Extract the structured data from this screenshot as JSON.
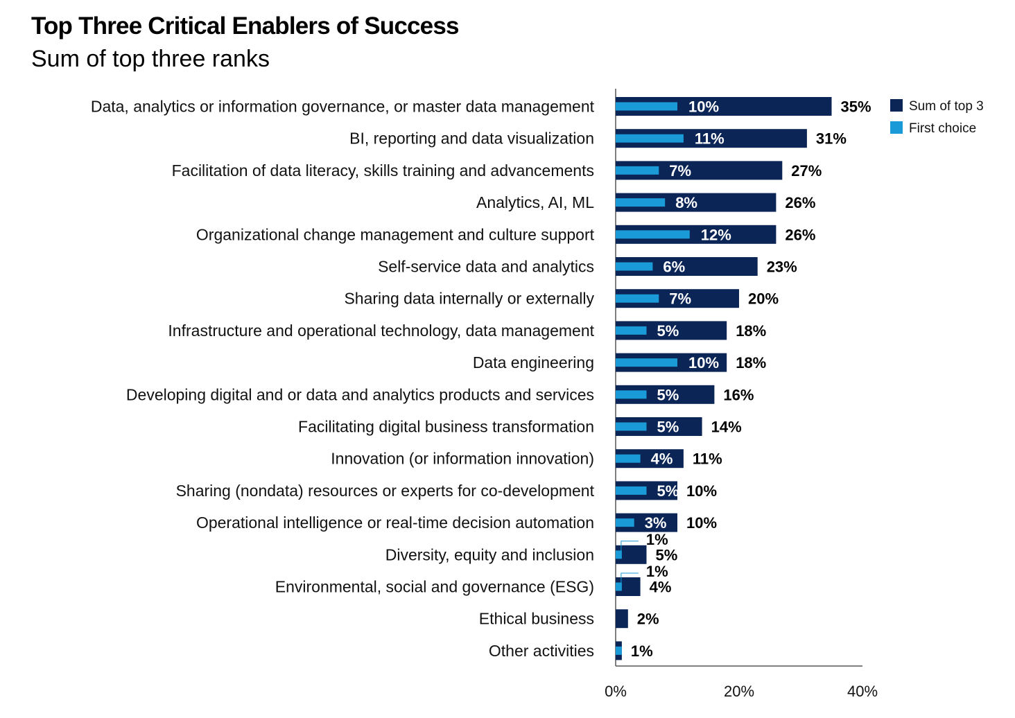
{
  "chart_data": {
    "type": "bar",
    "orientation": "horizontal",
    "title": "Top Three Critical Enablers of Success",
    "subtitle": "Sum of top three ranks",
    "categories": [
      "Data, analytics or information governance, or master data management",
      "BI, reporting and data visualization",
      "Facilitation of data literacy, skills training and advancements",
      "Analytics, AI, ML",
      "Organizational change management and culture support",
      "Self-service data and analytics",
      "Sharing data internally or externally",
      "Infrastructure and operational technology, data management",
      "Data engineering",
      "Developing digital and or data and analytics products and services",
      "Facilitating digital business transformation",
      "Innovation (or information innovation)",
      "Sharing (nondata) resources or experts for co-development",
      "Operational intelligence or real-time decision automation",
      "Diversity, equity and inclusion",
      "Environmental, social and governance (ESG)",
      "Ethical business",
      "Other activities"
    ],
    "series": [
      {
        "name": "Sum of top 3",
        "color": "#0b2556",
        "values": [
          35,
          31,
          27,
          26,
          26,
          23,
          20,
          18,
          18,
          16,
          14,
          11,
          10,
          10,
          5,
          4,
          2,
          1
        ],
        "labels": [
          "35%",
          "31%",
          "27%",
          "26%",
          "26%",
          "23%",
          "20%",
          "18%",
          "18%",
          "16%",
          "14%",
          "11%",
          "10%",
          "10%",
          "5%",
          "4%",
          "2%",
          "1%"
        ]
      },
      {
        "name": "First choice",
        "color": "#1a9ad6",
        "values": [
          10,
          11,
          7,
          8,
          12,
          6,
          7,
          5,
          10,
          5,
          5,
          4,
          5,
          3,
          1,
          1,
          0,
          1
        ],
        "labels": [
          "10%",
          "11%",
          "7%",
          "8%",
          "12%",
          "6%",
          "7%",
          "5%",
          "10%",
          "5%",
          "5%",
          "4%",
          "5%",
          "3%",
          "1%",
          "1%",
          "",
          ""
        ]
      }
    ],
    "xlim": [
      0,
      40
    ],
    "xticks": [
      "0%",
      "20%",
      "40%"
    ],
    "legend_position": "top-right",
    "grid": false
  }
}
